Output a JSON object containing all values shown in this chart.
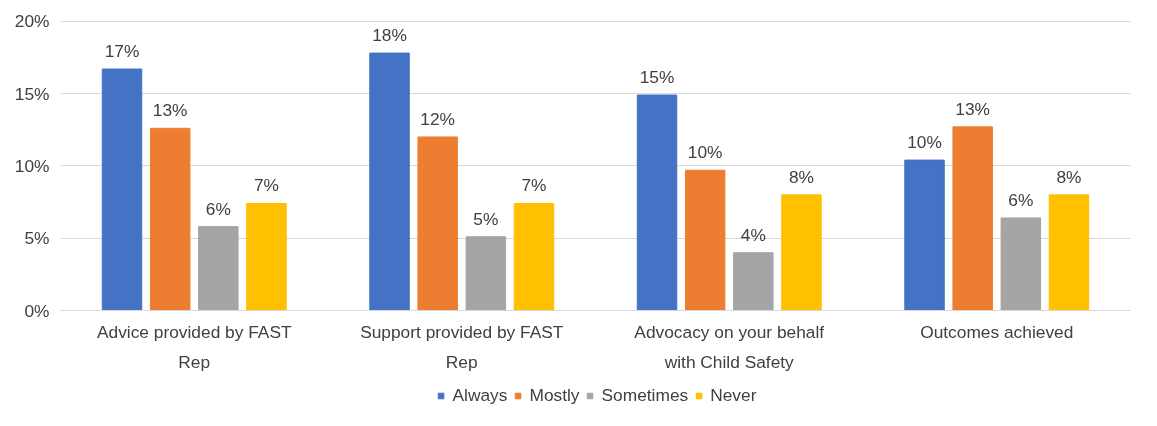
{
  "chart_data": {
    "type": "bar",
    "categories": [
      "Advice provided by FAST Rep",
      "Support provided by FAST Rep",
      "Advocacy on your behalf with Child Safety",
      "Outcomes achieved"
    ],
    "series": [
      {
        "name": "Always",
        "color": "#4472c4",
        "values": [
          16.7,
          17.8,
          14.9,
          10.4
        ],
        "value_labels": [
          "17%",
          "18%",
          "15%",
          "10%"
        ]
      },
      {
        "name": "Mostly",
        "color": "#ed7d31",
        "values": [
          12.6,
          12.0,
          9.7,
          12.7
        ],
        "value_labels": [
          "13%",
          "12%",
          "10%",
          "13%"
        ]
      },
      {
        "name": "Sometimes",
        "color": "#a5a5a5",
        "values": [
          5.8,
          5.1,
          4.0,
          6.4
        ],
        "value_labels": [
          "6%",
          "5%",
          "4%",
          "6%"
        ]
      },
      {
        "name": "Never",
        "color": "#ffc000",
        "values": [
          7.4,
          7.4,
          8.0,
          8.0
        ],
        "value_labels": [
          "7%",
          "7%",
          "8%",
          "8%"
        ]
      }
    ],
    "ylim": [
      0,
      20
    ],
    "yticks": [
      {
        "value": 0,
        "label": "0%"
      },
      {
        "value": 5,
        "label": "5%"
      },
      {
        "value": 10,
        "label": "10%"
      },
      {
        "value": 15,
        "label": "15%"
      },
      {
        "value": 20,
        "label": "20%"
      }
    ],
    "grid": "y",
    "legend": "bottom"
  }
}
